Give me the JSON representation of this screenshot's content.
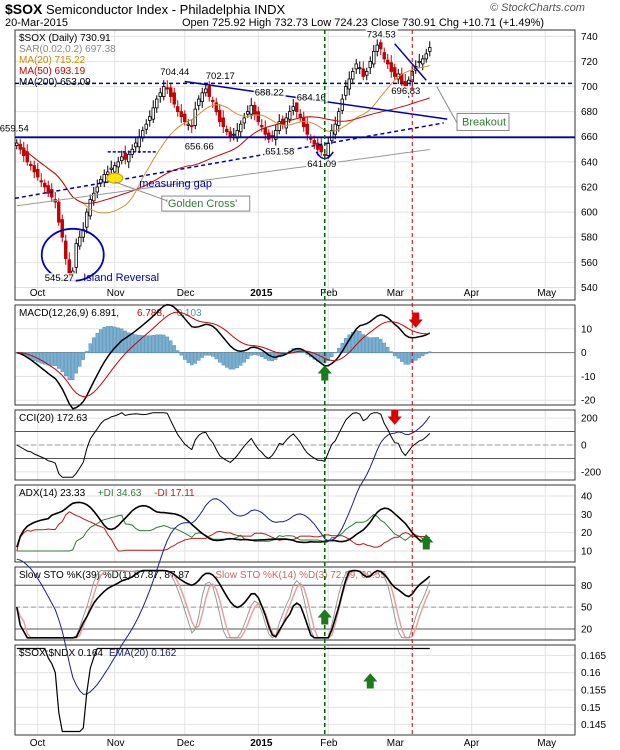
{
  "header": {
    "symbol": "$SOX",
    "name": "Semiconductor Index - Philadelphia  INDX",
    "date": "20-Mar-2015",
    "ohlc": "Open 725.92  High 732.73  Low 724.23  Close 730.91  Chg +10.71 (+1.49%)",
    "logo": "© StockCharts.com"
  },
  "chart_data": [
    {
      "type": "candlestick",
      "panel": "price",
      "legend": [
        {
          "text": "$SOX (Daily) 730.91",
          "color": "#000000"
        },
        {
          "text": "SAR(0.02,0.2) 697.38",
          "color": "#888888"
        },
        {
          "text": "MA(20) 715.22",
          "color": "#cc8800"
        },
        {
          "text": "MA(50) 693.19",
          "color": "#cc0000"
        },
        {
          "text": "MA(200) 653.09",
          "color": "#000000"
        }
      ],
      "ylim": [
        530,
        745
      ],
      "yticks": [
        540,
        560,
        580,
        600,
        620,
        640,
        660,
        680,
        700,
        720,
        740
      ],
      "xticks": [
        {
          "label": "Oct",
          "i": 6
        },
        {
          "label": "Nov",
          "i": 28
        },
        {
          "label": "Dec",
          "i": 48
        },
        {
          "label": "2015",
          "i": 69
        },
        {
          "label": "Feb",
          "i": 89
        },
        {
          "label": "Mar",
          "i": 108
        },
        {
          "label": "Apr",
          "i": 130
        },
        {
          "label": "May",
          "i": 151
        }
      ],
      "close": [
        655,
        650,
        645,
        640,
        637,
        632,
        628,
        624,
        620,
        615,
        612,
        608,
        592,
        580,
        563,
        550,
        553,
        575,
        580,
        586,
        600,
        610,
        615,
        620,
        626,
        630,
        632,
        635,
        637,
        640,
        644,
        642,
        646,
        650,
        655,
        660,
        665,
        670,
        676,
        683,
        690,
        695,
        700,
        698,
        692,
        686,
        680,
        676,
        672,
        670,
        668,
        682,
        690,
        695,
        698,
        692,
        688,
        680,
        672,
        668,
        664,
        660,
        662,
        665,
        670,
        675,
        680,
        685,
        678,
        672,
        668,
        662,
        658,
        660,
        665,
        672,
        670,
        675,
        680,
        684,
        680,
        675,
        668,
        662,
        658,
        654,
        650,
        648,
        645,
        655,
        665,
        670,
        680,
        690,
        700,
        706,
        712,
        718,
        715,
        708,
        712,
        720,
        728,
        733,
        730,
        722,
        718,
        712,
        708,
        710,
        702,
        698,
        705,
        712,
        716,
        720,
        722,
        726,
        731
      ],
      "levels": [
        {
          "value": 659.54,
          "label": "659.54"
        },
        {
          "value": 702.5,
          "label": ""
        }
      ],
      "price_labels": [
        "704.44",
        "702.17",
        "688.22",
        "684.16",
        "656.66",
        "651.58",
        "641.09",
        "734.53",
        "696.83",
        "545.27"
      ],
      "annotations": [
        "measuring gap",
        "'Golden Cross'",
        "Island Reversal",
        "Breakout"
      ]
    },
    {
      "type": "line",
      "panel": "macd",
      "legend": [
        {
          "text": "MACD(12,26,9) 6.891,",
          "color": "#000000"
        },
        {
          "text": "6.788,",
          "color": "#cc0000"
        },
        {
          "text": "0.103",
          "color": "#4a90b8"
        }
      ],
      "ylim": [
        -22,
        20
      ],
      "yticks": [
        -20,
        -10,
        0,
        10
      ]
    },
    {
      "type": "line",
      "panel": "cci",
      "legend": [
        {
          "text": "CCI(20) 172.63",
          "color": "#000000"
        }
      ],
      "ylim": [
        -260,
        260
      ],
      "yticks": [
        -200,
        0,
        200
      ]
    },
    {
      "type": "line",
      "panel": "adx",
      "legend": [
        {
          "text": "ADX(14) 23.33",
          "color": "#000000"
        },
        {
          "text": "+DI 34.63",
          "color": "#2e7d32"
        },
        {
          "text": "-DI 17.11",
          "color": "#b71c1c"
        }
      ],
      "ylim": [
        4,
        46
      ],
      "yticks": [
        10,
        20,
        30,
        40
      ]
    },
    {
      "type": "line",
      "panel": "sto",
      "legend": [
        {
          "text": "Slow STO %K(39) %D(1) 87.87, 87.87",
          "color": "#000000"
        },
        {
          "text": "Slow STO %K(14) %D(3) 72.19, 60.55",
          "color": "#cc6666"
        }
      ],
      "ylim": [
        5,
        105
      ],
      "yticks": [
        20,
        50,
        80
      ]
    },
    {
      "type": "line",
      "panel": "ratio",
      "legend": [
        {
          "text": "$SOX:$NDX 0.164",
          "color": "#000000"
        },
        {
          "text": "EMA(20) 0.162",
          "color": "#1a237e"
        }
      ],
      "ylim": [
        0.142,
        0.168
      ],
      "yticks": [
        0.145,
        0.15,
        0.155,
        0.16,
        0.165
      ]
    }
  ]
}
